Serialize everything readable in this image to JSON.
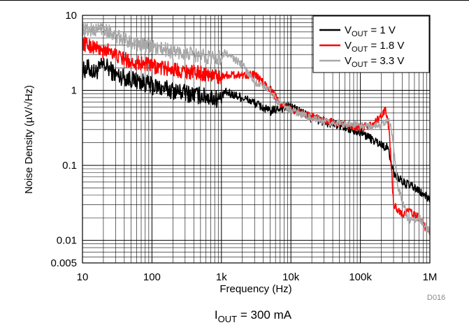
{
  "chart_data": {
    "type": "line",
    "xlabel": "Frequency (Hz)",
    "ylabel": "Noise Density (µV/√Hz)",
    "xscale": "log",
    "yscale": "log",
    "xlim": [
      10,
      1000000
    ],
    "ylim": [
      0.005,
      10
    ],
    "grid": true,
    "legend_position": "top-right",
    "x_ticks": [
      {
        "value": 10,
        "label": "10"
      },
      {
        "value": 100,
        "label": "100"
      },
      {
        "value": 1000,
        "label": "1k"
      },
      {
        "value": 10000,
        "label": "10k"
      },
      {
        "value": 100000,
        "label": "100k"
      },
      {
        "value": 1000000,
        "label": "1M"
      }
    ],
    "y_ticks": [
      {
        "value": 10,
        "label": "10"
      },
      {
        "value": 1,
        "label": "1"
      },
      {
        "value": 0.1,
        "label": "0.1"
      },
      {
        "value": 0.01,
        "label": "0.01"
      },
      {
        "value": 0.005,
        "label": "0.005"
      }
    ],
    "series": [
      {
        "name": "VOUT = 1 V",
        "color": "#000000",
        "noise": 0.12,
        "points": [
          [
            10,
            1.8
          ],
          [
            12,
            2.0
          ],
          [
            15,
            1.7
          ],
          [
            20,
            2.2
          ],
          [
            25,
            1.9
          ],
          [
            30,
            1.6
          ],
          [
            40,
            1.5
          ],
          [
            50,
            1.4
          ],
          [
            70,
            1.3
          ],
          [
            100,
            1.15
          ],
          [
            150,
            1.05
          ],
          [
            200,
            1.0
          ],
          [
            300,
            0.92
          ],
          [
            500,
            0.85
          ],
          [
            700,
            0.8
          ],
          [
            1000,
            0.75
          ],
          [
            1100,
            0.95
          ],
          [
            2000,
            0.8
          ],
          [
            3000,
            0.68
          ],
          [
            5000,
            0.52
          ],
          [
            7000,
            0.58
          ],
          [
            10000,
            0.6
          ],
          [
            15000,
            0.5
          ],
          [
            20000,
            0.42
          ],
          [
            30000,
            0.38
          ],
          [
            50000,
            0.34
          ],
          [
            80000,
            0.3
          ],
          [
            100000,
            0.28
          ],
          [
            150000,
            0.22
          ],
          [
            200000,
            0.19
          ],
          [
            250000,
            0.17
          ],
          [
            300000,
            0.08
          ],
          [
            400000,
            0.06
          ],
          [
            600000,
            0.05
          ],
          [
            1000000,
            0.035
          ]
        ]
      },
      {
        "name": "VOUT = 1.8 V",
        "color": "#ff0000",
        "noise": 0.1,
        "points": [
          [
            10,
            4.2
          ],
          [
            15,
            3.8
          ],
          [
            20,
            3.2
          ],
          [
            25,
            3.6
          ],
          [
            30,
            2.9
          ],
          [
            50,
            2.4
          ],
          [
            70,
            2.3
          ],
          [
            100,
            2.1
          ],
          [
            200,
            1.9
          ],
          [
            300,
            1.8
          ],
          [
            500,
            1.7
          ],
          [
            700,
            1.6
          ],
          [
            1000,
            1.5
          ],
          [
            1100,
            1.6
          ],
          [
            3000,
            1.62
          ],
          [
            5000,
            1.05
          ],
          [
            7000,
            0.68
          ],
          [
            10000,
            0.55
          ],
          [
            20000,
            0.45
          ],
          [
            30000,
            0.4
          ],
          [
            50000,
            0.36
          ],
          [
            80000,
            0.33
          ],
          [
            100000,
            0.32
          ],
          [
            150000,
            0.35
          ],
          [
            200000,
            0.45
          ],
          [
            230000,
            0.55
          ],
          [
            260000,
            0.3
          ],
          [
            300000,
            0.03
          ],
          [
            400000,
            0.022
          ],
          [
            500000,
            0.025
          ],
          [
            700000,
            0.02
          ],
          [
            1000000,
            0.012
          ]
        ]
      },
      {
        "name": "VOUT = 3.3 V",
        "color": "#a8a8a8",
        "noise": 0.1,
        "points": [
          [
            10,
            6.5
          ],
          [
            15,
            6.3
          ],
          [
            20,
            7.0
          ],
          [
            25,
            6.0
          ],
          [
            30,
            5.2
          ],
          [
            50,
            4.5
          ],
          [
            70,
            4.0
          ],
          [
            100,
            3.8
          ],
          [
            200,
            3.3
          ],
          [
            300,
            3.1
          ],
          [
            500,
            2.9
          ],
          [
            700,
            2.8
          ],
          [
            1000,
            2.7
          ],
          [
            1100,
            3.2
          ],
          [
            2000,
            2.2
          ],
          [
            3000,
            1.3
          ],
          [
            5000,
            1.0
          ],
          [
            7000,
            0.65
          ],
          [
            10000,
            0.55
          ],
          [
            20000,
            0.42
          ],
          [
            30000,
            0.38
          ],
          [
            50000,
            0.36
          ],
          [
            80000,
            0.35
          ],
          [
            100000,
            0.34
          ],
          [
            150000,
            0.33
          ],
          [
            200000,
            0.35
          ],
          [
            250000,
            0.42
          ],
          [
            280000,
            0.3
          ],
          [
            350000,
            0.05
          ],
          [
            500000,
            0.018
          ],
          [
            700000,
            0.02
          ],
          [
            1000000,
            0.013
          ]
        ]
      }
    ],
    "legend": [
      {
        "base": "V",
        "sub": "OUT",
        "rest": " = 1 V"
      },
      {
        "base": "V",
        "sub": "OUT",
        "rest": " = 1.8 V"
      },
      {
        "base": "V",
        "sub": "OUT",
        "rest": " = 3.3 V"
      }
    ],
    "code_label": "D016",
    "caption": {
      "base": "I",
      "sub": "OUT",
      "rest": " = 300 mA"
    }
  }
}
